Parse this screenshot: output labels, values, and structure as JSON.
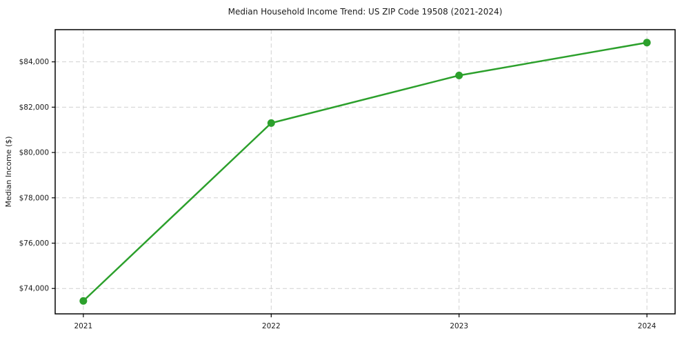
{
  "chart_data": {
    "type": "line",
    "title": "Median Household Income Trend: US ZIP Code 19508 (2021-2024)",
    "xlabel": "",
    "ylabel": "Median Income ($)",
    "x": [
      2021,
      2022,
      2023,
      2024
    ],
    "series": [
      {
        "name": "Median Household Income",
        "values": [
          73450,
          81300,
          83400,
          84850
        ]
      }
    ],
    "xticks": [
      2021,
      2022,
      2023,
      2024
    ],
    "xtick_labels": [
      "2021",
      "2022",
      "2023",
      "2024"
    ],
    "yticks": [
      74000,
      76000,
      78000,
      80000,
      82000,
      84000
    ],
    "ytick_labels": [
      "$74,000",
      "$76,000",
      "$78,000",
      "$80,000",
      "$82,000",
      "$84,000"
    ],
    "xlim": [
      2020.85,
      2024.15
    ],
    "ylim": [
      72880,
      85420
    ],
    "grid": true,
    "grid_style": "dashed",
    "legend": false,
    "colors": {
      "line": "#2ca02c",
      "marker": "#2ca02c",
      "grid": "#d0d0d0",
      "spine": "#000000",
      "text": "#1a1a1a",
      "background": "#ffffff"
    }
  }
}
